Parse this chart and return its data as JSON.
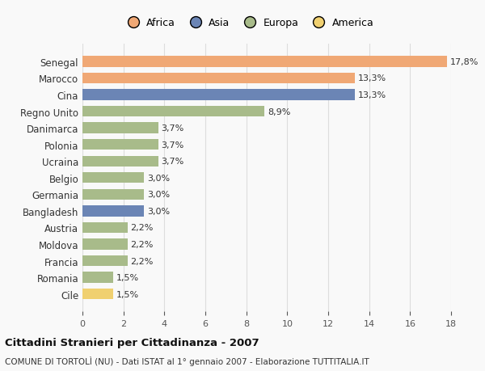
{
  "countries": [
    "Senegal",
    "Marocco",
    "Cina",
    "Regno Unito",
    "Danimarca",
    "Polonia",
    "Ucraina",
    "Belgio",
    "Germania",
    "Bangladesh",
    "Austria",
    "Moldova",
    "Francia",
    "Romania",
    "Cile"
  ],
  "values": [
    17.8,
    13.3,
    13.3,
    8.9,
    3.7,
    3.7,
    3.7,
    3.0,
    3.0,
    3.0,
    2.2,
    2.2,
    2.2,
    1.5,
    1.5
  ],
  "labels": [
    "17,8%",
    "13,3%",
    "13,3%",
    "8,9%",
    "3,7%",
    "3,7%",
    "3,7%",
    "3,0%",
    "3,0%",
    "3,0%",
    "2,2%",
    "2,2%",
    "2,2%",
    "1,5%",
    "1,5%"
  ],
  "colors": [
    "#F0A875",
    "#F0A875",
    "#6B85B5",
    "#A8BB8A",
    "#A8BB8A",
    "#A8BB8A",
    "#A8BB8A",
    "#A8BB8A",
    "#A8BB8A",
    "#6B85B5",
    "#A8BB8A",
    "#A8BB8A",
    "#A8BB8A",
    "#A8BB8A",
    "#F0D070"
  ],
  "continent_colors": {
    "Africa": "#F0A875",
    "Asia": "#6B85B5",
    "Europa": "#A8BB8A",
    "America": "#F0D070"
  },
  "legend_order": [
    "Africa",
    "Asia",
    "Europa",
    "America"
  ],
  "xlim": [
    0,
    18
  ],
  "xticks": [
    0,
    2,
    4,
    6,
    8,
    10,
    12,
    14,
    16,
    18
  ],
  "title": "Cittadini Stranieri per Cittadinanza - 2007",
  "subtitle": "COMUNE DI TORTOLÌ (NU) - Dati ISTAT al 1° gennaio 2007 - Elaborazione TUTTITALIA.IT",
  "background_color": "#f9f9f9",
  "grid_color": "#dddddd"
}
